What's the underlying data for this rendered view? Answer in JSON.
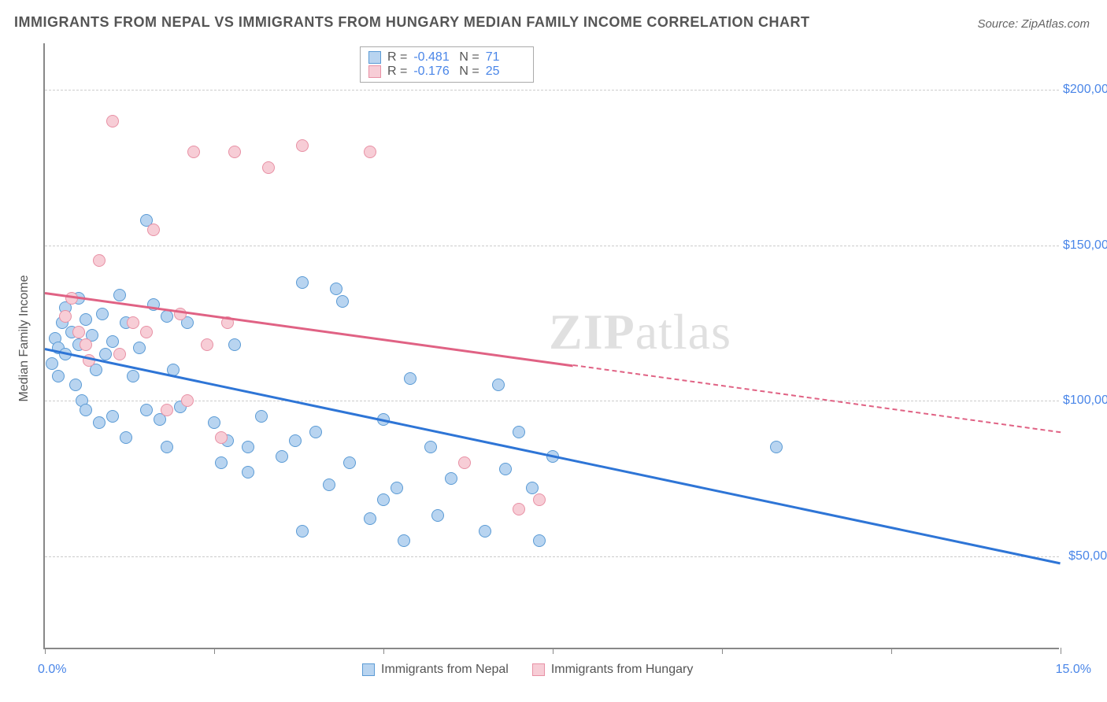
{
  "title": "IMMIGRANTS FROM NEPAL VS IMMIGRANTS FROM HUNGARY MEDIAN FAMILY INCOME CORRELATION CHART",
  "source": "Source: ZipAtlas.com",
  "y_axis_label": "Median Family Income",
  "watermark_bold": "ZIP",
  "watermark_light": "atlas",
  "chart": {
    "type": "scatter",
    "xlim": [
      0,
      15
    ],
    "ylim": [
      20000,
      215000
    ],
    "x_ticks": [
      0,
      2.5,
      5.0,
      7.5,
      10.0,
      12.5,
      15.0
    ],
    "x_tick_labels": {
      "0": "0.0%",
      "15": "15.0%"
    },
    "y_ticks": [
      50000,
      100000,
      150000,
      200000
    ],
    "y_tick_labels": [
      "$50,000",
      "$100,000",
      "$150,000",
      "$200,000"
    ],
    "grid_color": "#cccccc",
    "background_color": "#ffffff",
    "axis_color": "#888888",
    "tick_label_color": "#4a86e8",
    "series": [
      {
        "name": "Immigrants from Nepal",
        "color_fill": "#b8d4f0",
        "color_border": "#5b9bd5",
        "r": "-0.481",
        "n": "71",
        "trend": {
          "x1": 0,
          "y1": 117000,
          "x2": 15,
          "y2": 48000,
          "color": "#2e75d6",
          "solid_until_x": 15
        },
        "points": [
          [
            0.1,
            112000
          ],
          [
            0.15,
            120000
          ],
          [
            0.2,
            108000
          ],
          [
            0.2,
            117000
          ],
          [
            0.25,
            125000
          ],
          [
            0.3,
            130000
          ],
          [
            0.3,
            115000
          ],
          [
            0.4,
            122000
          ],
          [
            0.45,
            105000
          ],
          [
            0.5,
            118000
          ],
          [
            0.5,
            133000
          ],
          [
            0.55,
            100000
          ],
          [
            0.6,
            97000
          ],
          [
            0.6,
            126000
          ],
          [
            0.7,
            121000
          ],
          [
            0.75,
            110000
          ],
          [
            0.8,
            93000
          ],
          [
            0.85,
            128000
          ],
          [
            0.9,
            115000
          ],
          [
            1.0,
            95000
          ],
          [
            1.0,
            119000
          ],
          [
            1.1,
            134000
          ],
          [
            1.2,
            125000
          ],
          [
            1.2,
            88000
          ],
          [
            1.3,
            108000
          ],
          [
            1.4,
            117000
          ],
          [
            1.5,
            158000
          ],
          [
            1.5,
            97000
          ],
          [
            1.6,
            131000
          ],
          [
            1.7,
            94000
          ],
          [
            1.8,
            127000
          ],
          [
            1.8,
            85000
          ],
          [
            1.9,
            110000
          ],
          [
            2.0,
            98000
          ],
          [
            2.1,
            125000
          ],
          [
            2.5,
            93000
          ],
          [
            2.6,
            80000
          ],
          [
            2.7,
            87000
          ],
          [
            2.8,
            118000
          ],
          [
            3.0,
            77000
          ],
          [
            3.0,
            85000
          ],
          [
            3.2,
            95000
          ],
          [
            3.5,
            82000
          ],
          [
            3.7,
            87000
          ],
          [
            3.8,
            138000
          ],
          [
            3.8,
            58000
          ],
          [
            4.0,
            90000
          ],
          [
            4.2,
            73000
          ],
          [
            4.3,
            136000
          ],
          [
            4.4,
            132000
          ],
          [
            4.5,
            80000
          ],
          [
            4.8,
            62000
          ],
          [
            5.0,
            94000
          ],
          [
            5.0,
            68000
          ],
          [
            5.2,
            72000
          ],
          [
            5.3,
            55000
          ],
          [
            5.4,
            107000
          ],
          [
            5.7,
            85000
          ],
          [
            5.8,
            63000
          ],
          [
            6.0,
            75000
          ],
          [
            6.5,
            58000
          ],
          [
            6.7,
            105000
          ],
          [
            6.8,
            78000
          ],
          [
            7.0,
            90000
          ],
          [
            7.2,
            72000
          ],
          [
            7.3,
            55000
          ],
          [
            7.5,
            82000
          ],
          [
            10.8,
            85000
          ]
        ]
      },
      {
        "name": "Immigrants from Hungary",
        "color_fill": "#f7cdd6",
        "color_border": "#e891a5",
        "r": "-0.176",
        "n": "25",
        "trend": {
          "x1": 0,
          "y1": 135000,
          "x2": 15,
          "y2": 90000,
          "color": "#e06284",
          "solid_until_x": 7.8
        },
        "points": [
          [
            0.3,
            127000
          ],
          [
            0.4,
            133000
          ],
          [
            0.5,
            122000
          ],
          [
            0.6,
            118000
          ],
          [
            0.65,
            113000
          ],
          [
            0.8,
            145000
          ],
          [
            1.0,
            190000
          ],
          [
            1.1,
            115000
          ],
          [
            1.3,
            125000
          ],
          [
            1.5,
            122000
          ],
          [
            1.6,
            155000
          ],
          [
            1.8,
            97000
          ],
          [
            2.0,
            128000
          ],
          [
            2.1,
            100000
          ],
          [
            2.2,
            180000
          ],
          [
            2.4,
            118000
          ],
          [
            2.6,
            88000
          ],
          [
            2.7,
            125000
          ],
          [
            2.8,
            180000
          ],
          [
            3.3,
            175000
          ],
          [
            3.8,
            182000
          ],
          [
            4.8,
            180000
          ],
          [
            6.2,
            80000
          ],
          [
            7.0,
            65000
          ],
          [
            7.3,
            68000
          ]
        ]
      }
    ]
  },
  "bottom_legend": [
    {
      "swatch_fill": "#b8d4f0",
      "swatch_border": "#5b9bd5",
      "label": "Immigrants from Nepal"
    },
    {
      "swatch_fill": "#f7cdd6",
      "swatch_border": "#e891a5",
      "label": "Immigrants from Hungary"
    }
  ]
}
